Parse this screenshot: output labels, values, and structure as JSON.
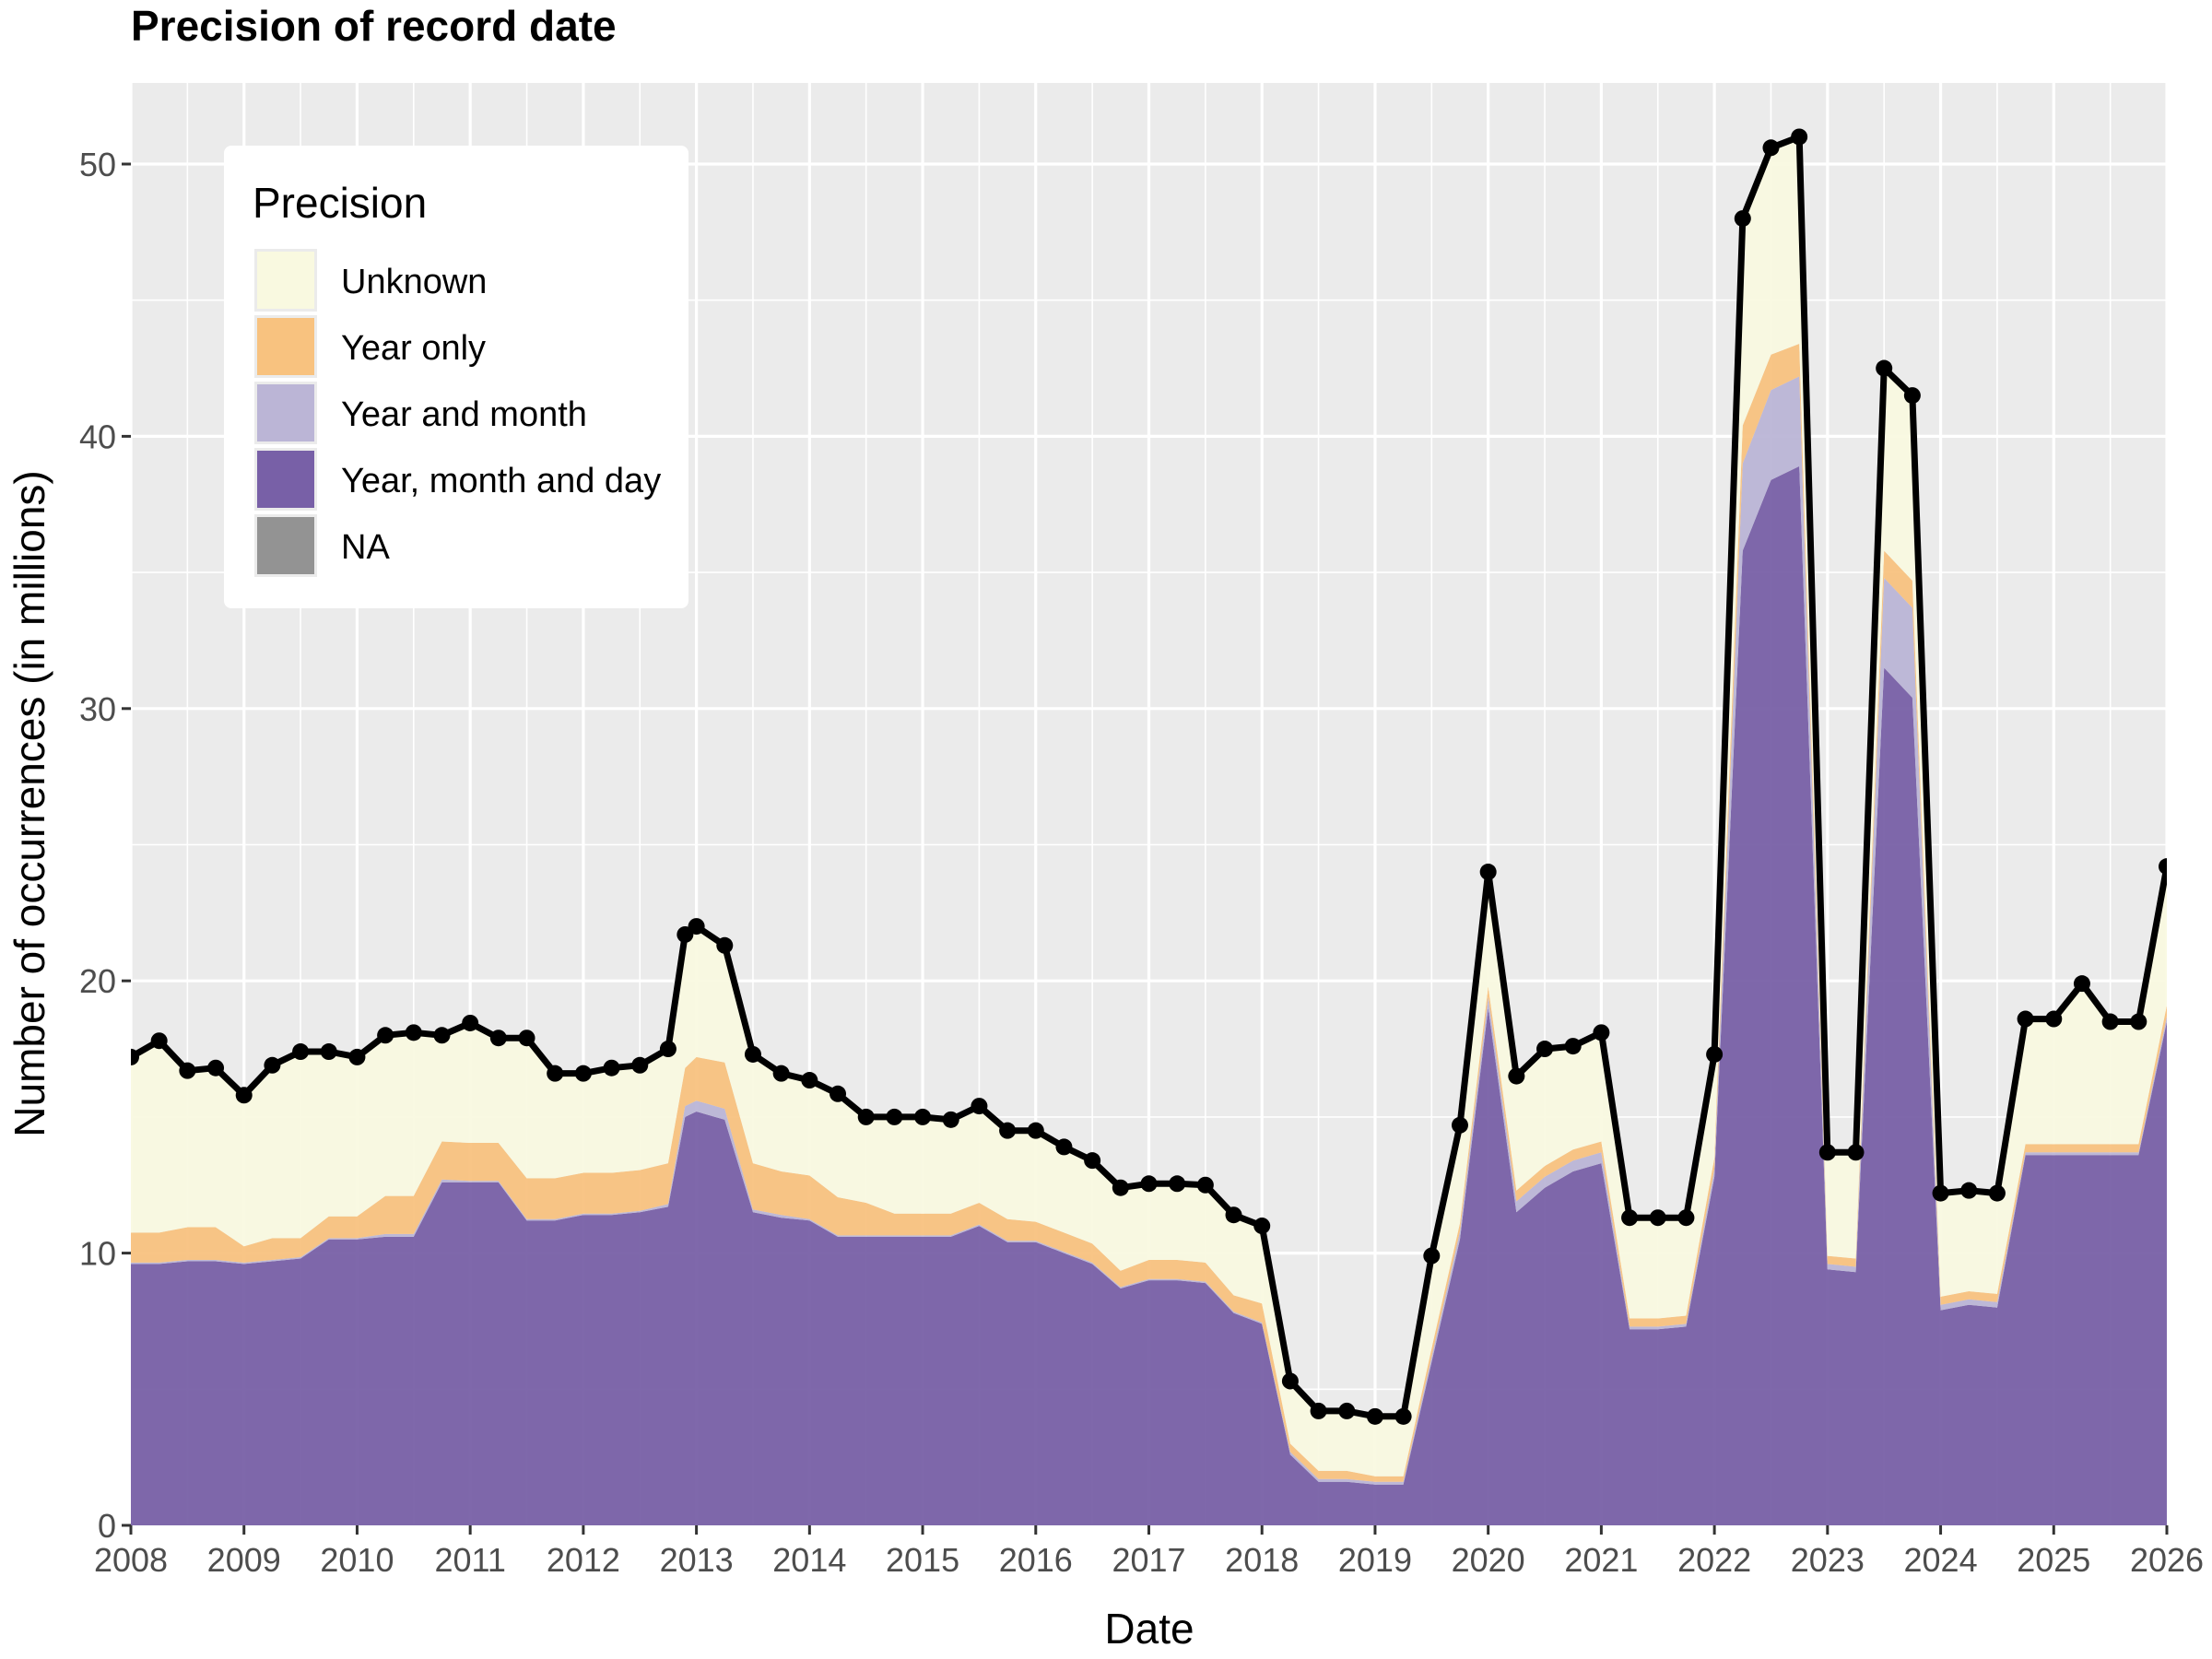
{
  "chart_data": {
    "type": "area",
    "title": "Precision of record date",
    "xlabel": "Date",
    "ylabel": "Number of occurrences (in millions)",
    "xlim": [
      2008,
      2026
    ],
    "ylim": [
      0,
      53
    ],
    "grid": true,
    "x_ticks": [
      "2008",
      "2009",
      "2010",
      "2011",
      "2012",
      "2013",
      "2014",
      "2015",
      "2016",
      "2017",
      "2018",
      "2019",
      "2020",
      "2021",
      "2022",
      "2023",
      "2024",
      "2025",
      "2026"
    ],
    "y_ticks": [
      "0",
      "10",
      "20",
      "30",
      "40",
      "50"
    ],
    "legend": {
      "title": "Precision",
      "placement": "top-left",
      "entries": [
        {
          "label": "Unknown",
          "color": "#f9f9e0"
        },
        {
          "label": "Year only",
          "color": "#f8c27f"
        },
        {
          "label": "Year and month",
          "color": "#bbb5d6"
        },
        {
          "label": "Year, month and day",
          "color": "#7860a7"
        },
        {
          "label": "NA",
          "color": "#939393"
        }
      ]
    },
    "x": [
      2008.0,
      2008.25,
      2008.5,
      2008.75,
      2009.0,
      2009.25,
      2009.5,
      2009.75,
      2010.0,
      2010.25,
      2010.5,
      2010.75,
      2011.0,
      2011.25,
      2011.5,
      2011.75,
      2012.0,
      2012.25,
      2012.5,
      2012.75,
      2012.9,
      2013.0,
      2013.25,
      2013.5,
      2013.75,
      2014.0,
      2014.25,
      2014.5,
      2014.75,
      2015.0,
      2015.25,
      2015.5,
      2015.75,
      2016.0,
      2016.25,
      2016.5,
      2016.75,
      2017.0,
      2017.25,
      2017.5,
      2017.75,
      2018.0,
      2018.25,
      2018.5,
      2018.75,
      2019.0,
      2019.25,
      2019.5,
      2019.75,
      2020.0,
      2020.25,
      2020.5,
      2020.75,
      2021.0,
      2021.25,
      2021.5,
      2021.75,
      2022.0,
      2022.25,
      2022.5,
      2022.75,
      2023.0,
      2023.25,
      2023.5,
      2023.75,
      2024.0,
      2024.25,
      2024.5,
      2024.75,
      2025.0,
      2025.25,
      2025.5,
      2025.75,
      2026.0
    ],
    "series": [
      {
        "name": "Year, month and day",
        "color": "#7860a7",
        "values": [
          9.6,
          9.6,
          9.7,
          9.7,
          9.6,
          9.7,
          9.8,
          10.5,
          10.5,
          10.6,
          10.6,
          12.6,
          12.6,
          12.6,
          11.2,
          11.2,
          11.4,
          11.4,
          11.5,
          11.7,
          15.0,
          15.2,
          14.9,
          11.5,
          11.3,
          11.2,
          10.6,
          10.6,
          10.6,
          10.6,
          10.6,
          11.0,
          10.4,
          10.4,
          10.0,
          9.6,
          8.7,
          9.0,
          9.0,
          8.9,
          7.8,
          7.4,
          2.6,
          1.6,
          1.6,
          1.5,
          1.5,
          6.0,
          10.5,
          19.0,
          11.5,
          12.4,
          13.0,
          13.3,
          7.2,
          7.2,
          7.3,
          12.8,
          35.8,
          38.4,
          38.9,
          9.4,
          9.3,
          31.5,
          30.4,
          7.9,
          8.1,
          8.0,
          13.6,
          13.6,
          13.6,
          13.6,
          13.6,
          18.5
        ]
      },
      {
        "name": "Year and month",
        "color": "#bbb5d6",
        "values": [
          0.05,
          0.05,
          0.05,
          0.05,
          0.05,
          0.05,
          0.05,
          0.05,
          0.05,
          0.1,
          0.1,
          0.1,
          0.05,
          0.05,
          0.05,
          0.05,
          0.05,
          0.05,
          0.05,
          0.1,
          0.4,
          0.4,
          0.4,
          0.1,
          0.1,
          0.05,
          0.05,
          0.05,
          0.05,
          0.05,
          0.05,
          0.05,
          0.05,
          0.05,
          0.05,
          0.05,
          0.05,
          0.05,
          0.05,
          0.05,
          0.05,
          0.05,
          0.1,
          0.1,
          0.1,
          0.1,
          0.1,
          0.2,
          0.3,
          0.4,
          0.4,
          0.4,
          0.4,
          0.4,
          0.1,
          0.1,
          0.1,
          0.3,
          3.2,
          3.3,
          3.3,
          0.2,
          0.2,
          3.3,
          3.3,
          0.2,
          0.2,
          0.2,
          0.1,
          0.1,
          0.1,
          0.1,
          0.1,
          0.2
        ]
      },
      {
        "name": "Year only",
        "color": "#f8c27f",
        "values": [
          1.1,
          1.1,
          1.2,
          1.2,
          0.6,
          0.8,
          0.7,
          0.8,
          0.8,
          1.4,
          1.4,
          1.4,
          1.4,
          1.4,
          1.5,
          1.5,
          1.5,
          1.5,
          1.5,
          1.5,
          1.4,
          1.6,
          1.7,
          1.7,
          1.6,
          1.6,
          1.4,
          1.2,
          0.8,
          0.8,
          0.8,
          0.8,
          0.8,
          0.7,
          0.7,
          0.7,
          0.6,
          0.7,
          0.7,
          0.7,
          0.6,
          0.7,
          0.3,
          0.3,
          0.3,
          0.2,
          0.2,
          0.3,
          0.3,
          0.4,
          0.4,
          0.4,
          0.4,
          0.4,
          0.3,
          0.3,
          0.3,
          0.4,
          1.4,
          1.3,
          1.2,
          0.3,
          0.3,
          1.0,
          1.0,
          0.3,
          0.3,
          0.3,
          0.3,
          0.3,
          0.3,
          0.3,
          0.3,
          0.4
        ]
      },
      {
        "name": "Unknown",
        "color": "#f9f9e0",
        "values": [
          6.45,
          7.05,
          5.75,
          5.85,
          5.55,
          6.35,
          6.85,
          6.05,
          5.85,
          5.9,
          6.0,
          3.9,
          4.4,
          3.85,
          5.15,
          3.85,
          3.65,
          3.85,
          3.85,
          4.2,
          4.9,
          4.8,
          4.3,
          4.0,
          3.6,
          3.5,
          3.8,
          3.15,
          3.55,
          3.55,
          3.45,
          3.55,
          3.25,
          3.35,
          3.15,
          3.05,
          3.05,
          2.8,
          2.8,
          2.85,
          2.95,
          2.85,
          2.3,
          2.2,
          2.2,
          2.2,
          2.2,
          3.4,
          3.6,
          4.2,
          4.2,
          4.3,
          3.8,
          4.0,
          3.7,
          3.7,
          3.6,
          3.8,
          7.6,
          7.6,
          7.6,
          3.8,
          3.9,
          6.7,
          6.8,
          3.8,
          3.7,
          3.7,
          4.6,
          4.6,
          5.9,
          4.5,
          4.5,
          5.1
        ]
      },
      {
        "name": "NA",
        "color": "#939393",
        "values": [
          0,
          0,
          0,
          0,
          0,
          0,
          0,
          0,
          0,
          0,
          0,
          0,
          0,
          0,
          0,
          0,
          0,
          0,
          0,
          0,
          0,
          0,
          0,
          0,
          0,
          0,
          0,
          0,
          0,
          0,
          0,
          0,
          0,
          0,
          0,
          0,
          0,
          0,
          0,
          0,
          0,
          0,
          0,
          0,
          0,
          0,
          0,
          0,
          0,
          0,
          0,
          0,
          0,
          0,
          0,
          0,
          0,
          0,
          0,
          0,
          0,
          0,
          0,
          0,
          0,
          0,
          0,
          0,
          0,
          0,
          0,
          0,
          0,
          0
        ]
      }
    ],
    "total": {
      "name": "Total",
      "color": "#000000",
      "values": [
        17.2,
        17.8,
        16.7,
        16.8,
        15.8,
        16.9,
        17.4,
        17.4,
        17.2,
        18.0,
        18.1,
        18.0,
        18.45,
        17.9,
        17.9,
        16.6,
        16.6,
        16.8,
        16.9,
        17.5,
        21.7,
        22.0,
        21.3,
        17.3,
        16.6,
        16.35,
        15.85,
        15.0,
        15.0,
        15.0,
        14.9,
        15.4,
        14.5,
        14.5,
        13.9,
        13.4,
        12.4,
        12.55,
        12.55,
        12.5,
        11.4,
        11.0,
        5.3,
        4.2,
        4.2,
        4.0,
        4.0,
        9.9,
        14.7,
        24.0,
        16.5,
        17.5,
        17.6,
        18.1,
        11.3,
        11.3,
        11.3,
        17.3,
        48.0,
        50.6,
        51.0,
        13.7,
        13.7,
        42.5,
        41.5,
        12.2,
        12.3,
        12.2,
        18.6,
        18.6,
        19.9,
        18.5,
        18.5,
        24.2
      ]
    }
  }
}
